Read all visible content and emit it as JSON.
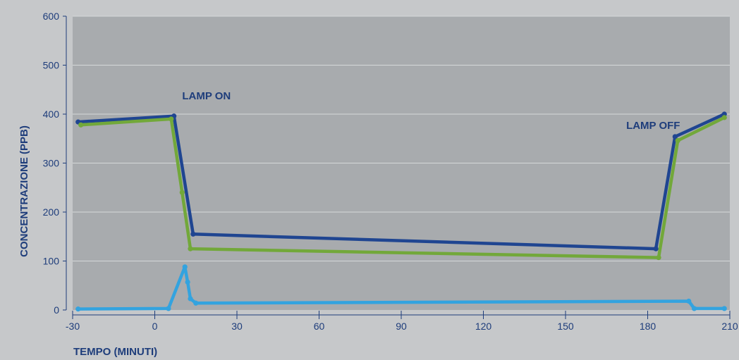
{
  "chart_data": {
    "type": "line",
    "title": "",
    "xlabel": "TEMPO (MINUTI)",
    "ylabel": "CONCENTRAZIONE (PPB)",
    "xlim": [
      -30,
      210
    ],
    "ylim": [
      0,
      600
    ],
    "x_ticks": [
      -30,
      0,
      30,
      60,
      90,
      120,
      150,
      180,
      210
    ],
    "y_ticks": [
      0,
      100,
      200,
      300,
      400,
      500,
      600
    ],
    "grid": true,
    "legend": "none",
    "colors": {
      "background": "#c6c8ca",
      "plot_area": "#a8abae",
      "gridline": "#d6d8da",
      "axis": "#1e3d7b",
      "text": "#1e3d7b"
    },
    "series": [
      {
        "color": "#1f4591",
        "points": [
          [
            -28,
            384
          ],
          [
            7,
            396
          ],
          [
            14,
            155
          ],
          [
            183,
            125
          ],
          [
            190,
            354
          ],
          [
            208,
            400
          ]
        ]
      },
      {
        "color": "#72a83a",
        "points": [
          [
            -27,
            378
          ],
          [
            6,
            390
          ],
          [
            10,
            240
          ],
          [
            13,
            125
          ],
          [
            184,
            107
          ],
          [
            191,
            346
          ],
          [
            208,
            393
          ]
        ]
      },
      {
        "color": "#33a3df",
        "points": [
          [
            -28,
            2
          ],
          [
            5,
            3
          ],
          [
            11,
            88
          ],
          [
            12,
            57
          ],
          [
            13,
            23
          ],
          [
            15,
            14
          ],
          [
            195,
            18
          ],
          [
            197,
            3
          ],
          [
            208,
            3
          ]
        ]
      }
    ],
    "annotations": [
      {
        "text": "LAMP ON",
        "x": 10,
        "y": 430
      },
      {
        "text": "LAMP OFF",
        "x": 182,
        "y": 370
      }
    ]
  }
}
